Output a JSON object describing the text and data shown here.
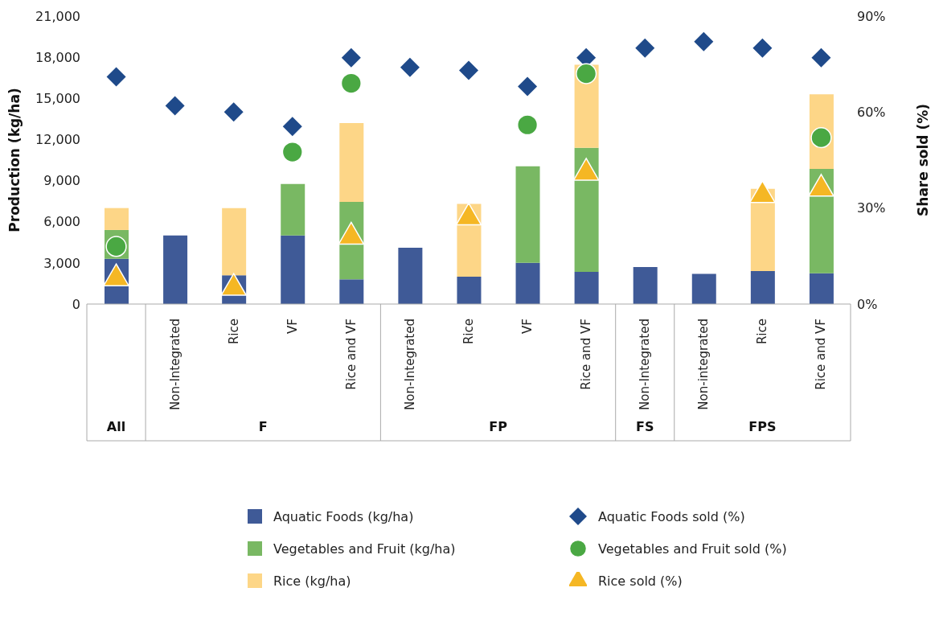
{
  "chart_data": {
    "type": "bar",
    "stacked": true,
    "ylabel": "Production (kg/ha)",
    "y2label": "Share sold (%)",
    "categories": [
      null,
      "Non-Integrated",
      "Rice",
      "VF",
      "Rice and VF",
      "Non-Integrated",
      "Rice",
      "VF",
      "Rice and VF",
      "Non-Integrated",
      "Non-integrated",
      "Rice",
      "Rice and VF"
    ],
    "annotations": [
      "All",
      "F",
      "FP",
      "FS",
      "FPS"
    ],
    "series": [
      {
        "name": "Aquatic Foods (kg/ha)",
        "color": "#3f5a97",
        "values": [
          3300,
          5000,
          2100,
          5000,
          1800,
          4100,
          2000,
          3000,
          2350,
          2700,
          2200,
          2400,
          2250
        ]
      },
      {
        "name": "Vegetables and Fruit (kg/ha)",
        "color": "#79b863",
        "values": [
          2100,
          null,
          null,
          3750,
          5650,
          null,
          null,
          7050,
          9050,
          null,
          null,
          null,
          7600
        ]
      },
      {
        "name": "Rice (kg/ha)",
        "color": "#fdd687",
        "values": [
          1600,
          null,
          4900,
          null,
          5750,
          null,
          5300,
          null,
          6050,
          null,
          null,
          6000,
          5450
        ]
      },
      {
        "name": "Aquatic Foods sold (%)",
        "type": "scatter",
        "axis": "y2",
        "marker": "diamond",
        "color": "#1f4a8a",
        "values": [
          71,
          62,
          60,
          55.5,
          77,
          74,
          73,
          68,
          77,
          80,
          82,
          80,
          77
        ]
      },
      {
        "name": "Vegetables and Fruit sold (%)",
        "type": "scatter",
        "axis": "y2",
        "marker": "circle",
        "color": "#4aa843",
        "values": [
          18,
          null,
          null,
          47.5,
          69,
          null,
          null,
          56,
          72,
          null,
          null,
          null,
          52
        ]
      },
      {
        "name": "Rice sold (%)",
        "type": "scatter",
        "axis": "y2",
        "marker": "triangle",
        "color": "#f5b724",
        "values": [
          8,
          null,
          5,
          null,
          21,
          null,
          27,
          null,
          41,
          null,
          null,
          34,
          36
        ]
      }
    ],
    "ylim": [
      0,
      21000
    ],
    "yticks": [
      {
        "value": 0,
        "label": "0"
      },
      {
        "value": 3000,
        "label": "3,000"
      },
      {
        "value": 6000,
        "label": "6,000"
      },
      {
        "value": 9000,
        "label": "9,000"
      },
      {
        "value": 12000,
        "label": "12,000"
      },
      {
        "value": 15000,
        "label": "15,000"
      },
      {
        "value": 18000,
        "label": "18,000"
      },
      {
        "value": 21000,
        "label": "21,000"
      }
    ],
    "y2lim": [
      0,
      90
    ],
    "y2ticks": [
      {
        "value": 0,
        "label": "0%"
      },
      {
        "value": 30,
        "label": "30%"
      },
      {
        "value": 60,
        "label": "60%"
      },
      {
        "value": 90,
        "label": "90%"
      }
    ],
    "legend": "bottom"
  }
}
